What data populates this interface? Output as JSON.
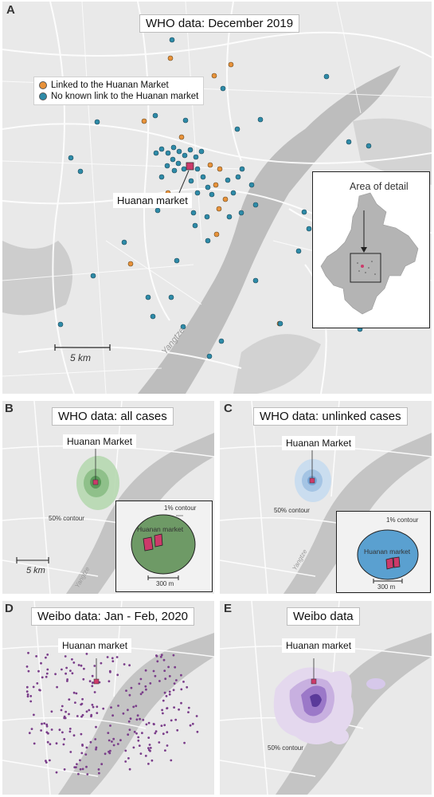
{
  "panels": {
    "a": {
      "letter": "A",
      "title": "WHO data: December 2019",
      "legend": [
        {
          "label": "Linked to the Huanan Market",
          "color": "#e8923a"
        },
        {
          "label": "No known link to the Huanan market",
          "color": "#2e8ba8"
        }
      ],
      "market_label": "Huanan market",
      "inset_title": "Area of detail",
      "scale_label": "5 km",
      "river_label": "Yangtze"
    },
    "b": {
      "letter": "B",
      "title": "WHO data: all cases",
      "market_label": "Huanan Market",
      "contour_50": "50% contour",
      "contour_1": "1% contour",
      "inset_market_label": "Huanan market",
      "inset_scale": "300 m",
      "scale_label": "5 km",
      "river_label": "Yangtze",
      "contour_color": "#5a9a5a"
    },
    "c": {
      "letter": "C",
      "title": "WHO data: unlinked cases",
      "market_label": "Huanan Market",
      "contour_50": "50% contour",
      "contour_1": "1% contour",
      "inset_market_label": "Huanan market",
      "inset_scale": "300 m",
      "river_label": "Yangtze",
      "contour_color": "#5aa0d0"
    },
    "d": {
      "letter": "D",
      "title": "Weibo data: Jan - Feb, 2020",
      "market_label": "Huanan market",
      "point_color": "#7a3d8a"
    },
    "e": {
      "letter": "E",
      "title": "Weibo data",
      "market_label": "Huanan market",
      "contour_50": "50% contour",
      "contour_color": "#7a5ab0"
    }
  }
}
